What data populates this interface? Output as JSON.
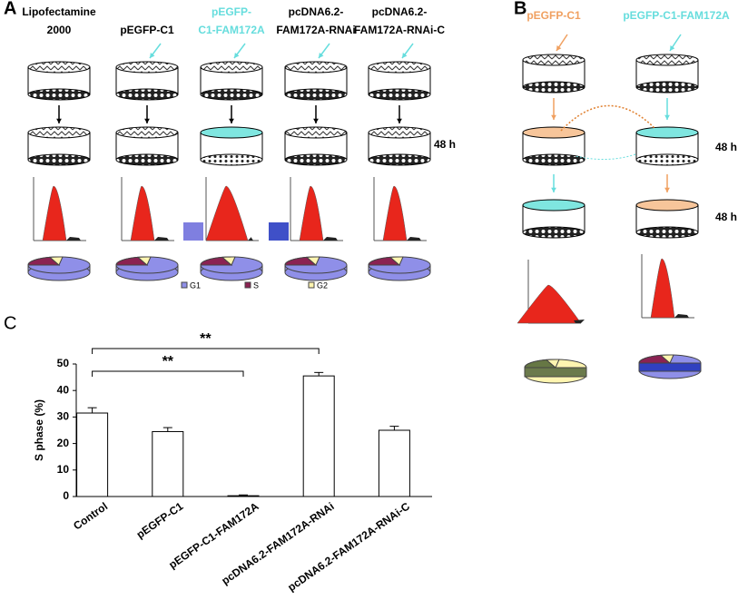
{
  "panel_a": {
    "label": "A",
    "columns": [
      {
        "lines": [
          "Lipofectamine",
          "2000"
        ],
        "color": "#000000"
      },
      {
        "lines": [
          "pEGFP-C1"
        ],
        "color": "#000000"
      },
      {
        "lines": [
          "pEGFP-",
          "C1-FAM172A"
        ],
        "color": "#66dddd"
      },
      {
        "lines": [
          "pcDNA6.2-",
          "FAM172A-RNAi"
        ],
        "color": "#000000"
      },
      {
        "lines": [
          "pcDNA6.2-",
          "FAM172A-RNAi-C"
        ],
        "color": "#000000"
      }
    ],
    "time": "48 h",
    "legend": [
      {
        "name": "G1",
        "color": "#8f8fe8"
      },
      {
        "name": "S",
        "color": "#8b2252"
      },
      {
        "name": "G2",
        "color": "#fff5b0"
      }
    ]
  },
  "panel_b": {
    "label": "B",
    "columns": [
      {
        "name": "pEGFP-C1",
        "color": "#f0a060"
      },
      {
        "name": "pEGFP-C1-FAM172A",
        "color": "#66dddd"
      }
    ],
    "times": [
      "48 h",
      "48 h"
    ]
  },
  "chart_data": {
    "type": "bar",
    "panel_label": "C",
    "y_label": "S phase (%)",
    "categories": [
      "Control",
      "pEGFP-C1",
      "pEGFP-C1-FAM172A",
      "pcDNA6.2-FAM172A-RNAi",
      "pcDNA6.2-FAM172A-RNAi-C"
    ],
    "values": [
      31.5,
      24.5,
      0.3,
      45.5,
      25
    ],
    "errors": [
      2,
      1.5,
      0.3,
      1.3,
      1.5
    ],
    "color": "#ffffff",
    "ylim": [
      0,
      50
    ],
    "yticks": [
      0,
      10,
      20,
      30,
      40,
      50
    ],
    "annotations": [
      "**",
      "**"
    ]
  }
}
